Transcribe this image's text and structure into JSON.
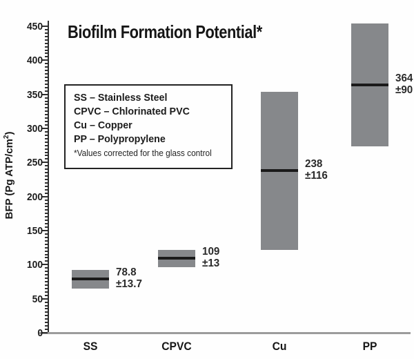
{
  "title": "Biofilm Formation Potential*",
  "y_axis": {
    "label_prefix": "BFP (Pg ATP/cm",
    "label_sup": "2",
    "label_suffix": ")",
    "min": 0,
    "max": 450,
    "major_step": 50,
    "minor_step": 5
  },
  "legend": {
    "items": [
      "SS – Stainless Steel",
      "CPVC – Chlorinated PVC",
      "Cu – Copper",
      "PP – Polypropylene"
    ],
    "footnote": "*Values corrected for the glass control"
  },
  "chart_data": {
    "type": "bar",
    "subtype": "floating-range-bars-with-mean-line",
    "title": "Biofilm Formation Potential*",
    "xlabel": "",
    "ylabel": "BFP (Pg ATP/cm²)",
    "ylim": [
      0,
      450
    ],
    "grid": false,
    "legend_position": "upper-left-inside",
    "categories": [
      "SS",
      "CPVC",
      "Cu",
      "PP"
    ],
    "series": [
      {
        "name": "mean",
        "values": [
          78.8,
          109,
          238,
          364
        ]
      },
      {
        "name": "sd",
        "values": [
          13.7,
          13,
          116,
          90
        ]
      }
    ],
    "points": [
      {
        "category": "SS",
        "mean": 78.8,
        "sd": 13.7,
        "range": [
          65.1,
          92.5
        ],
        "value_label": "78.8",
        "sd_label": "±13.7"
      },
      {
        "category": "CPVC",
        "mean": 109,
        "sd": 13,
        "range": [
          96,
          122
        ],
        "value_label": "109",
        "sd_label": "±13"
      },
      {
        "category": "Cu",
        "mean": 238,
        "sd": 116,
        "range": [
          122,
          354
        ],
        "value_label": "238",
        "sd_label": "±116"
      },
      {
        "category": "PP",
        "mean": 364,
        "sd": 90,
        "range": [
          274,
          454
        ],
        "value_label": "364",
        "sd_label": "±90"
      }
    ]
  },
  "colors": {
    "bar_fill": "#86888b",
    "mean_line": "#1a1a1a",
    "axis": "#2e2e2e",
    "baseline": "#9b9b9b",
    "text": "#1c1c1c",
    "background": "#fefefe"
  }
}
